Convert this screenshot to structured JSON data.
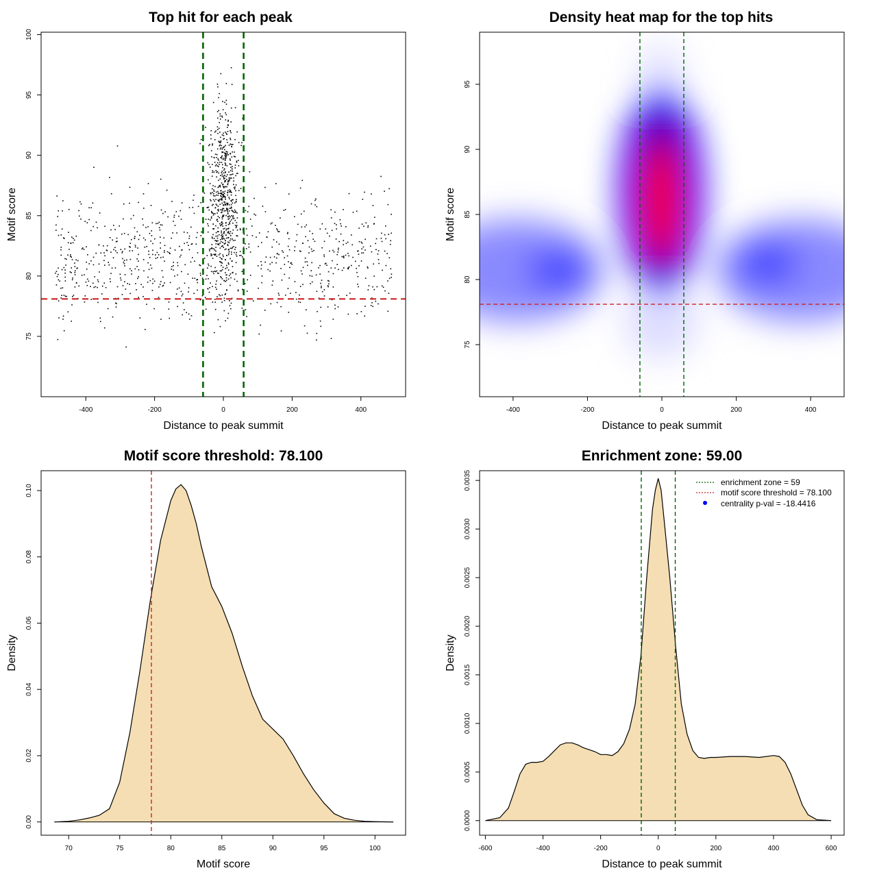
{
  "chart_data": [
    {
      "id": "scatter",
      "type": "scatter",
      "title": "Top hit for each peak",
      "xlabel": "Distance to peak summit",
      "ylabel": "Motif score",
      "xlim": [
        -530,
        530
      ],
      "ylim": [
        70,
        100.2
      ],
      "xticks": [
        -400,
        -200,
        0,
        200,
        400
      ],
      "yticks": [
        75,
        80,
        85,
        90,
        95,
        100
      ],
      "xtick_labels": [
        "-400",
        "-200",
        "0",
        "200",
        "400"
      ],
      "ytick_labels": [
        "75",
        "80",
        "85",
        "90",
        "95",
        "100"
      ],
      "vlines": [
        -59,
        59
      ],
      "hline": 78.1,
      "vline_color": "#006400",
      "hline_color": "#cc2222",
      "point_color": "#000000",
      "point_count": 1500
    },
    {
      "id": "heatmap",
      "type": "heatmap",
      "title": "Density heat map for the top hits",
      "xlabel": "Distance to peak summit",
      "ylabel": "Motif score",
      "xlim": [
        -490,
        490
      ],
      "ylim": [
        71,
        99
      ],
      "xticks": [
        -400,
        -200,
        0,
        200,
        400
      ],
      "yticks": [
        75,
        80,
        85,
        90,
        95
      ],
      "xtick_labels": [
        "-400",
        "-200",
        "0",
        "200",
        "400"
      ],
      "ytick_labels": [
        "75",
        "80",
        "85",
        "90",
        "95"
      ],
      "vlines": [
        -59,
        59
      ],
      "hline": 78.1,
      "colors": [
        "#ffffff",
        "#0000ff",
        "#ff0000"
      ]
    },
    {
      "id": "score_density",
      "type": "area",
      "title": "Motif score threshold: 78.100",
      "xlabel": "Motif score",
      "ylabel": "Density",
      "xlim": [
        67.3,
        103
      ],
      "ylim": [
        -0.004,
        0.106
      ],
      "xticks": [
        70,
        75,
        80,
        85,
        90,
        95,
        100
      ],
      "yticks": [
        0.0,
        0.02,
        0.04,
        0.06,
        0.08,
        0.1
      ],
      "xtick_labels": [
        "70",
        "75",
        "80",
        "85",
        "90",
        "95",
        "100"
      ],
      "ytick_labels": [
        "0.00",
        "0.02",
        "0.04",
        "0.06",
        "0.08",
        "0.10"
      ],
      "vlines": [
        78.1
      ],
      "fill_color": "#f5deb3",
      "x": [
        68.6,
        70,
        71,
        72,
        73,
        74,
        75,
        76,
        77,
        78,
        79,
        80,
        80.5,
        81,
        81.5,
        82,
        82.5,
        83,
        84,
        85,
        86,
        87,
        88,
        89,
        90,
        91,
        92,
        93,
        94,
        95,
        96,
        97,
        98,
        99,
        100,
        101,
        101.8
      ],
      "y": [
        0.0,
        0.0002,
        0.0006,
        0.0012,
        0.002,
        0.004,
        0.012,
        0.027,
        0.046,
        0.067,
        0.085,
        0.097,
        0.1005,
        0.1018,
        0.1,
        0.0955,
        0.09,
        0.083,
        0.071,
        0.065,
        0.057,
        0.047,
        0.038,
        0.031,
        0.028,
        0.025,
        0.02,
        0.0145,
        0.0097,
        0.0057,
        0.0025,
        0.0011,
        0.0005,
        0.0002,
        0.0001,
        3e-05,
        0.0
      ]
    },
    {
      "id": "distance_density",
      "type": "area",
      "title": "Enrichment zone: 59.00",
      "xlabel": "Distance to peak summit",
      "ylabel": "Density",
      "xlim": [
        -620,
        645
      ],
      "ylim": [
        -0.00015,
        0.0036
      ],
      "xticks": [
        -600,
        -400,
        -200,
        0,
        200,
        400,
        600
      ],
      "yticks": [
        0.0,
        0.0005,
        0.001,
        0.0015,
        0.002,
        0.0025,
        0.003,
        0.0035
      ],
      "xtick_labels": [
        "-600",
        "-400",
        "-200",
        "0",
        "200",
        "400",
        "600"
      ],
      "ytick_labels": [
        "0.0000",
        "0.0005",
        "0.0010",
        "0.0015",
        "0.0020",
        "0.0025",
        "0.0030",
        "0.0035"
      ],
      "vlines": [
        -59,
        59
      ],
      "fill_color": "#f5deb3",
      "x": [
        -600,
        -550,
        -520,
        -500,
        -480,
        -460,
        -440,
        -420,
        -400,
        -380,
        -360,
        -340,
        -320,
        -300,
        -280,
        -260,
        -240,
        -220,
        -200,
        -180,
        -160,
        -140,
        -120,
        -100,
        -80,
        -60,
        -40,
        -20,
        -10,
        0,
        10,
        20,
        40,
        60,
        80,
        100,
        120,
        140,
        160,
        180,
        200,
        250,
        300,
        350,
        400,
        420,
        440,
        460,
        480,
        500,
        520,
        550,
        600
      ],
      "y": [
        0.0,
        3e-05,
        0.00013,
        0.0003,
        0.00048,
        0.00058,
        0.0006,
        0.0006,
        0.00061,
        0.00066,
        0.00072,
        0.00078,
        0.0008,
        0.0008,
        0.00078,
        0.00075,
        0.00073,
        0.00071,
        0.00068,
        0.00068,
        0.00067,
        0.00071,
        0.00079,
        0.00094,
        0.0012,
        0.0017,
        0.0025,
        0.0032,
        0.0034,
        0.00352,
        0.0034,
        0.0031,
        0.0025,
        0.0018,
        0.0012,
        0.00089,
        0.00072,
        0.00065,
        0.00064,
        0.00065,
        0.00065,
        0.00066,
        0.00066,
        0.00065,
        0.00067,
        0.00066,
        0.0006,
        0.00048,
        0.00032,
        0.00016,
        6e-05,
        1e-05,
        0.0
      ],
      "legend": [
        {
          "label": "enrichment zone = 59",
          "style": "dotted-line",
          "color": "#006400"
        },
        {
          "label": "motif score threshold = 78.100",
          "style": "dotted-line",
          "color": "#cc2222"
        },
        {
          "label": "centrality p-val = -18.4416",
          "style": "point",
          "color": "#0000ff"
        }
      ],
      "legend_position": "top-right"
    }
  ]
}
